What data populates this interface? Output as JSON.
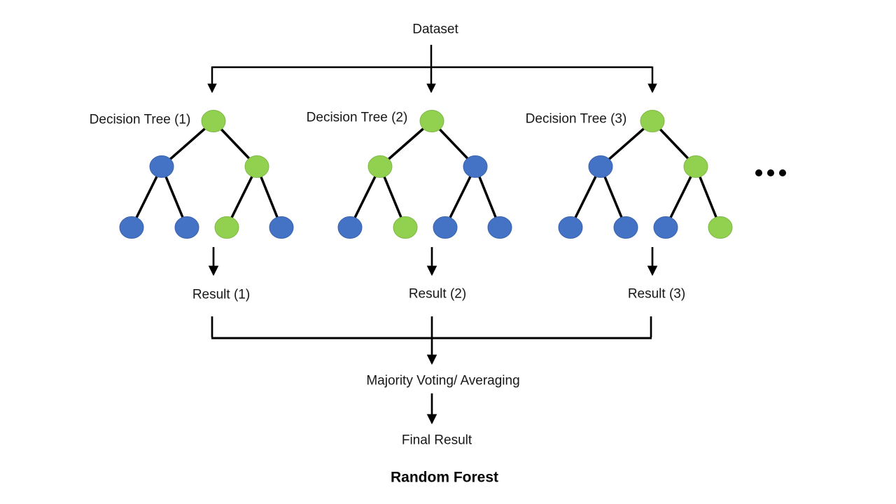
{
  "diagram_title": "Random Forest",
  "dataset_label": "Dataset",
  "ellipsis": "...",
  "colors": {
    "line": "#000000",
    "node_blue": "#4472C4",
    "node_blue_border": "#3A63AE",
    "node_green": "#92D050",
    "node_green_border": "#7FB945"
  },
  "trees": [
    {
      "label": "Decision Tree (1)",
      "result_label": "Result (1)",
      "nodes": {
        "root": "green",
        "level2": [
          "blue",
          "green"
        ],
        "leaves": [
          "blue",
          "blue",
          "green",
          "blue"
        ]
      }
    },
    {
      "label": "Decision Tree (2)",
      "result_label": "Result (2)",
      "nodes": {
        "root": "green",
        "level2": [
          "green",
          "blue"
        ],
        "leaves": [
          "blue",
          "green",
          "blue",
          "blue"
        ]
      }
    },
    {
      "label": "Decision Tree (3)",
      "result_label": "Result (3)",
      "nodes": {
        "root": "green",
        "level2": [
          "blue",
          "green"
        ],
        "leaves": [
          "blue",
          "blue",
          "blue",
          "green"
        ]
      }
    }
  ],
  "aggregation_label": "Majority Voting/ Averaging",
  "final_result_label": "Final Result"
}
